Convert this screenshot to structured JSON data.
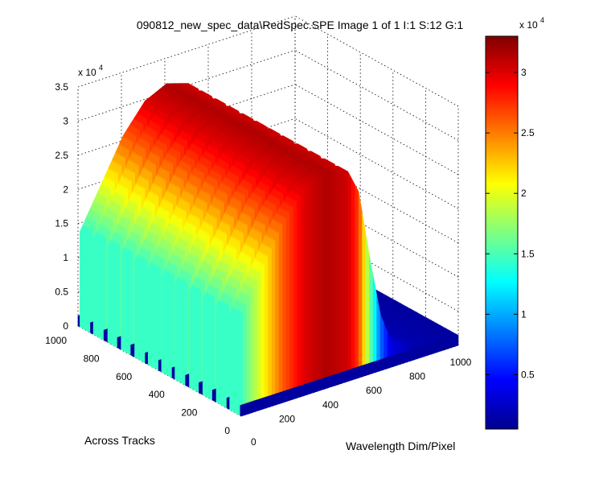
{
  "chart_data": {
    "type": "surface",
    "title": "090812_new_spec_data\\RedSpec.SPE  Image 1 of 1  I:1  S:12  G:1",
    "xlabel": "Wavelength Dim/Pixel",
    "ylabel": "Across Tracks",
    "zlabel": "",
    "xlim": [
      0,
      1000
    ],
    "ylim": [
      0,
      1000
    ],
    "zlim": [
      0,
      35000
    ],
    "x_ticks": [
      "200",
      "400",
      "600",
      "800",
      "1000"
    ],
    "x_zero_label": "0",
    "y_ticks": [
      "0",
      "200",
      "400",
      "600",
      "800",
      "1000"
    ],
    "z_ticks": [
      "0",
      "0.5",
      "1",
      "1.5",
      "2",
      "2.5",
      "3",
      "3.5"
    ],
    "z_multiplier": {
      "base": "x 10",
      "exp": "4"
    },
    "grid": true,
    "colormap": "jet",
    "colorbar": {
      "min": 500,
      "max": 33000,
      "ticks": [
        "0.5",
        "1",
        "1.5",
        "2",
        "2.5",
        "3"
      ],
      "multiplier": {
        "base": "x 10",
        "exp": "4"
      }
    },
    "tracks": {
      "count": 12,
      "description": "illuminated spectral tracks separated by dark gaps"
    },
    "spectrum_profile": {
      "x": [
        0,
        100,
        200,
        300,
        400,
        500,
        550,
        600,
        650,
        700,
        800,
        1000
      ],
      "z": [
        14000,
        20000,
        26000,
        30000,
        31500,
        30500,
        27000,
        17000,
        8000,
        3500,
        2000,
        1500
      ]
    },
    "dark_level": 1500
  }
}
